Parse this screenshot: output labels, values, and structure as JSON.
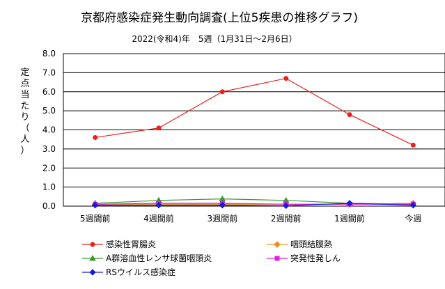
{
  "chart_data": {
    "type": "line",
    "title": "京都府感染症発生動向調査(上位5疾患の推移グラフ)",
    "subtitle": "2022(令和4)年　5週（1月31日～2月6日）",
    "ylabel_chars": [
      "定",
      "点",
      "当",
      "た",
      "り",
      "（",
      "人",
      "）"
    ],
    "categories": [
      "5週間前",
      "4週間前",
      "3週間前",
      "2週間前",
      "1週間前",
      "今週"
    ],
    "ylim": [
      0,
      8
    ],
    "yticks": [
      "0.0",
      "1.0",
      "2.0",
      "3.0",
      "4.0",
      "5.0",
      "6.0",
      "7.0",
      "8.0"
    ],
    "grid": true,
    "legend_position": "bottom",
    "series": [
      {
        "name": "感染性胃腸炎",
        "color": "#e8221e",
        "marker": "circle",
        "values": [
          3.6,
          4.1,
          6.0,
          6.7,
          4.8,
          3.2
        ]
      },
      {
        "name": "咽頭結膜熱",
        "color": "#f08c1a",
        "marker": "diamond",
        "values": [
          0.1,
          0.1,
          0.1,
          0.1,
          0.1,
          0.15
        ]
      },
      {
        "name": "A群溶血性レンサ球菌咽頭炎",
        "color": "#3a9a2a",
        "marker": "triangle",
        "values": [
          0.15,
          0.3,
          0.38,
          0.3,
          0.15,
          0.1
        ]
      },
      {
        "name": "突発性発しん",
        "color": "#e020e0",
        "marker": "square",
        "values": [
          0.1,
          0.15,
          0.15,
          0.1,
          0.1,
          0.1
        ]
      },
      {
        "name": "RSウイルス感染症",
        "color": "#1a1ad8",
        "marker": "diamond",
        "values": [
          0.05,
          0.05,
          0.05,
          0.02,
          0.15,
          0.05
        ]
      }
    ]
  }
}
